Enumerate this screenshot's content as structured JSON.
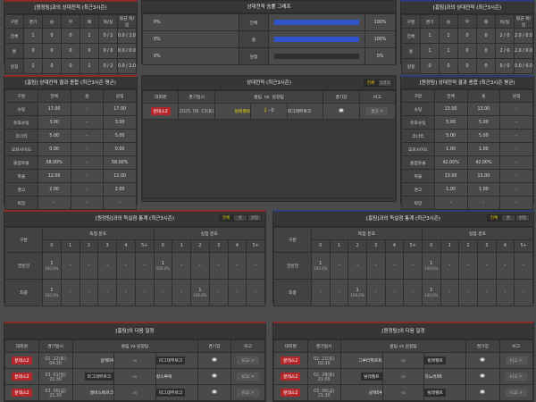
{
  "h2h_away": {
    "title": "[원정팀]과의 상대전적 (최근3시즌)",
    "headers": [
      "구분",
      "경기",
      "승",
      "무",
      "패",
      "득/실",
      "평균 득/실"
    ],
    "rows": [
      [
        "전체",
        "1",
        "0",
        "0",
        "1",
        "0 / 2",
        "0.0 / 2.0"
      ],
      [
        "홈",
        "0",
        "0",
        "0",
        "0",
        "0 / 0",
        "0.0 / 0.0"
      ],
      [
        "원정",
        "1",
        "0",
        "0",
        "1",
        "0 / 2",
        "0.0 / 2.0"
      ]
    ]
  },
  "winrate": {
    "title": "상대전적 승률 그래프",
    "rows": [
      {
        "label": "전체",
        "left": "0%",
        "right": "100%",
        "pct": 100
      },
      {
        "label": "홈",
        "left": "0%",
        "right": "100%",
        "pct": 100
      },
      {
        "label": "원정",
        "left": "0%",
        "right": "0%",
        "pct": 0
      }
    ]
  },
  "h2h_home": {
    "title": "[홈팀]과의 상대전적 (최근3시즌)",
    "headers": [
      "구분",
      "경기",
      "승",
      "무",
      "패",
      "득/실",
      "평균 득/실"
    ],
    "rows": [
      [
        "전체",
        "1",
        "1",
        "0",
        "0",
        "2 / 0",
        "2.0 / 0.0"
      ],
      [
        "홈",
        "1",
        "1",
        "0",
        "0",
        "2 / 0",
        "2.0 / 0.0"
      ],
      [
        "원정",
        "0",
        "0",
        "0",
        "0",
        "0 / 0",
        "0.0 / 0.0"
      ]
    ]
  },
  "summary_home": {
    "title": "[홈팀] 상대전적 결과 종합 (최근3시즌 평균)",
    "headers": [
      "구분",
      "전체",
      "홈",
      "원정"
    ],
    "rows": [
      [
        "슈팅",
        "17.00",
        "-",
        "17.00"
      ],
      [
        "유효슈팅",
        "3.00",
        "-",
        "3.00"
      ],
      [
        "코너킥",
        "5.00",
        "-",
        "5.00"
      ],
      [
        "오프사이드",
        "0.00",
        "-",
        "0.00"
      ],
      [
        "볼점유율",
        "58.00%",
        "-",
        "58.00%"
      ],
      [
        "파울",
        "12.00",
        "-",
        "12.00"
      ],
      [
        "경고",
        "2.00",
        "-",
        "2.00"
      ],
      [
        "퇴장",
        "-",
        "-",
        "-"
      ]
    ]
  },
  "summary_away": {
    "title": "[원정팀] 상대전적 결과 종합 (최근3시즌 평균)",
    "headers": [
      "구분",
      "전체",
      "홈",
      "원정"
    ],
    "rows": [
      [
        "슈팅",
        "13.00",
        "13.00",
        "-"
      ],
      [
        "유효슈팅",
        "5.00",
        "5.00",
        "-"
      ],
      [
        "코너킥",
        "5.00",
        "5.00",
        "-"
      ],
      [
        "오프사이드",
        "1.00",
        "1.00",
        "-"
      ],
      [
        "볼점유율",
        "42.00%",
        "42.00%",
        "-"
      ],
      [
        "파울",
        "13.00",
        "13.00",
        "-"
      ],
      [
        "경고",
        "1.00",
        "1.00",
        "-"
      ],
      [
        "퇴장",
        "-",
        "-",
        "-"
      ]
    ]
  },
  "recent": {
    "title": "상대전적 (최근3시즌)",
    "tabs": [
      "전체",
      "5경기"
    ],
    "headers": [
      "대회명",
      "경기일시",
      "홈팀",
      "vs",
      "원정팀",
      "경기장",
      "비고"
    ],
    "matches": [
      {
        "league": "분데스2",
        "date": "2025. 09. 13(토)",
        "home": "빌레펠트",
        "score_home": "2",
        "dash": "-",
        "score_away": "0",
        "away": "마그데부르크",
        "btn": "결과 >"
      }
    ]
  },
  "goals_away": {
    "title": "[원정팀]과의 득실점 통계 (최근3시즌)",
    "tabs": [
      "전체",
      "홈",
      "원정"
    ],
    "label": "구분",
    "scored": "득점 분포",
    "conceded": "실점 분포",
    "cols": [
      "0",
      "1",
      "2",
      "3",
      "4",
      "5+"
    ],
    "rows": [
      {
        "label": "전반전",
        "cells": [
          [
            "1",
            "100.0%"
          ],
          [
            "-"
          ],
          [
            "-"
          ],
          [
            "-"
          ],
          [
            "-"
          ],
          [
            "-"
          ],
          [
            "1",
            "100.0%"
          ],
          [
            "-"
          ],
          [
            "-"
          ],
          [
            "-"
          ],
          [
            "-"
          ],
          [
            "-"
          ]
        ]
      },
      {
        "label": "최종",
        "cells": [
          [
            "1",
            "100.0%"
          ],
          [
            "-"
          ],
          [
            "-"
          ],
          [
            "-"
          ],
          [
            "-"
          ],
          [
            "-"
          ],
          [
            "-"
          ],
          [
            "-"
          ],
          [
            "1",
            "100.0%"
          ],
          [
            "-"
          ],
          [
            "-"
          ],
          [
            "-"
          ]
        ]
      }
    ]
  },
  "goals_home": {
    "title": "[홈팀]과의 득실점 통계 (최근3시즌)",
    "tabs": [
      "전체",
      "홈",
      "원정"
    ],
    "label": "구분",
    "scored": "득점 분포",
    "conceded": "실점 분포",
    "cols": [
      "0",
      "1",
      "2",
      "3",
      "4",
      "5+"
    ],
    "rows": [
      {
        "label": "전반전",
        "cells": [
          [
            "1",
            "100.0%"
          ],
          [
            "-"
          ],
          [
            "-"
          ],
          [
            "-"
          ],
          [
            "-"
          ],
          [
            "-"
          ],
          [
            "1",
            "100.0%"
          ],
          [
            "-"
          ],
          [
            "-"
          ],
          [
            "-"
          ],
          [
            "-"
          ],
          [
            "-"
          ]
        ]
      },
      {
        "label": "최종",
        "cells": [
          [
            "-"
          ],
          [
            "-"
          ],
          [
            "1",
            "100.0%"
          ],
          [
            "-"
          ],
          [
            "-"
          ],
          [
            "-"
          ],
          [
            "1",
            "100.0%"
          ],
          [
            "-"
          ],
          [
            "-"
          ],
          [
            "-"
          ],
          [
            "-"
          ],
          [
            "-"
          ]
        ]
      }
    ]
  },
  "next_home": {
    "title": "[홈팀]의 다음 일정",
    "headers": [
      "대회명",
      "경기일시",
      "홈팀",
      "vs",
      "원정팀",
      "경기장",
      "비고"
    ],
    "matches": [
      {
        "league": "분데스2",
        "date": "02. 22(토) 04:30",
        "home": "샬케04",
        "vs": "vs",
        "away": "마그데부르크",
        "hl": "away",
        "btn": "비교 >"
      },
      {
        "league": "분데스2",
        "date": "03. 01(일) 21:30",
        "home": "마그데부르크",
        "vs": "vs",
        "away": "칼스루에",
        "hl": "home",
        "btn": "비교 >"
      },
      {
        "league": "분데스2",
        "date": "03. 06(금) 21:30",
        "home": "엘버스베르크",
        "vs": "vs",
        "away": "마그데부르크",
        "hl": "away",
        "btn": "비교 >"
      }
    ]
  },
  "next_away": {
    "title": "[원정팀]의 다음 일정",
    "headers": [
      "대회명",
      "경기일시",
      "홈팀",
      "vs",
      "원정팀",
      "경기장",
      "비고"
    ],
    "matches": [
      {
        "league": "분데스2",
        "date": "02. 21(토) 02:30",
        "home": "그루터퓌르트",
        "vs": "vs",
        "away": "빌레펠트",
        "hl": "away",
        "btn": "비교 >"
      },
      {
        "league": "분데스2",
        "date": "02. 28(토) 21:00",
        "home": "빌레펠트",
        "vs": "vs",
        "away": "하노버96",
        "hl": "home",
        "btn": "비교 >"
      },
      {
        "league": "분데스2",
        "date": "03. 06(금) 21:30",
        "home": "샬케04",
        "vs": "vs",
        "away": "빌레펠트",
        "hl": "away",
        "btn": "비교 >"
      }
    ]
  },
  "colors": {
    "accent_yellow": "#e8d200",
    "league_red": "#b5262a",
    "bar_blue": "#2f54c9"
  }
}
